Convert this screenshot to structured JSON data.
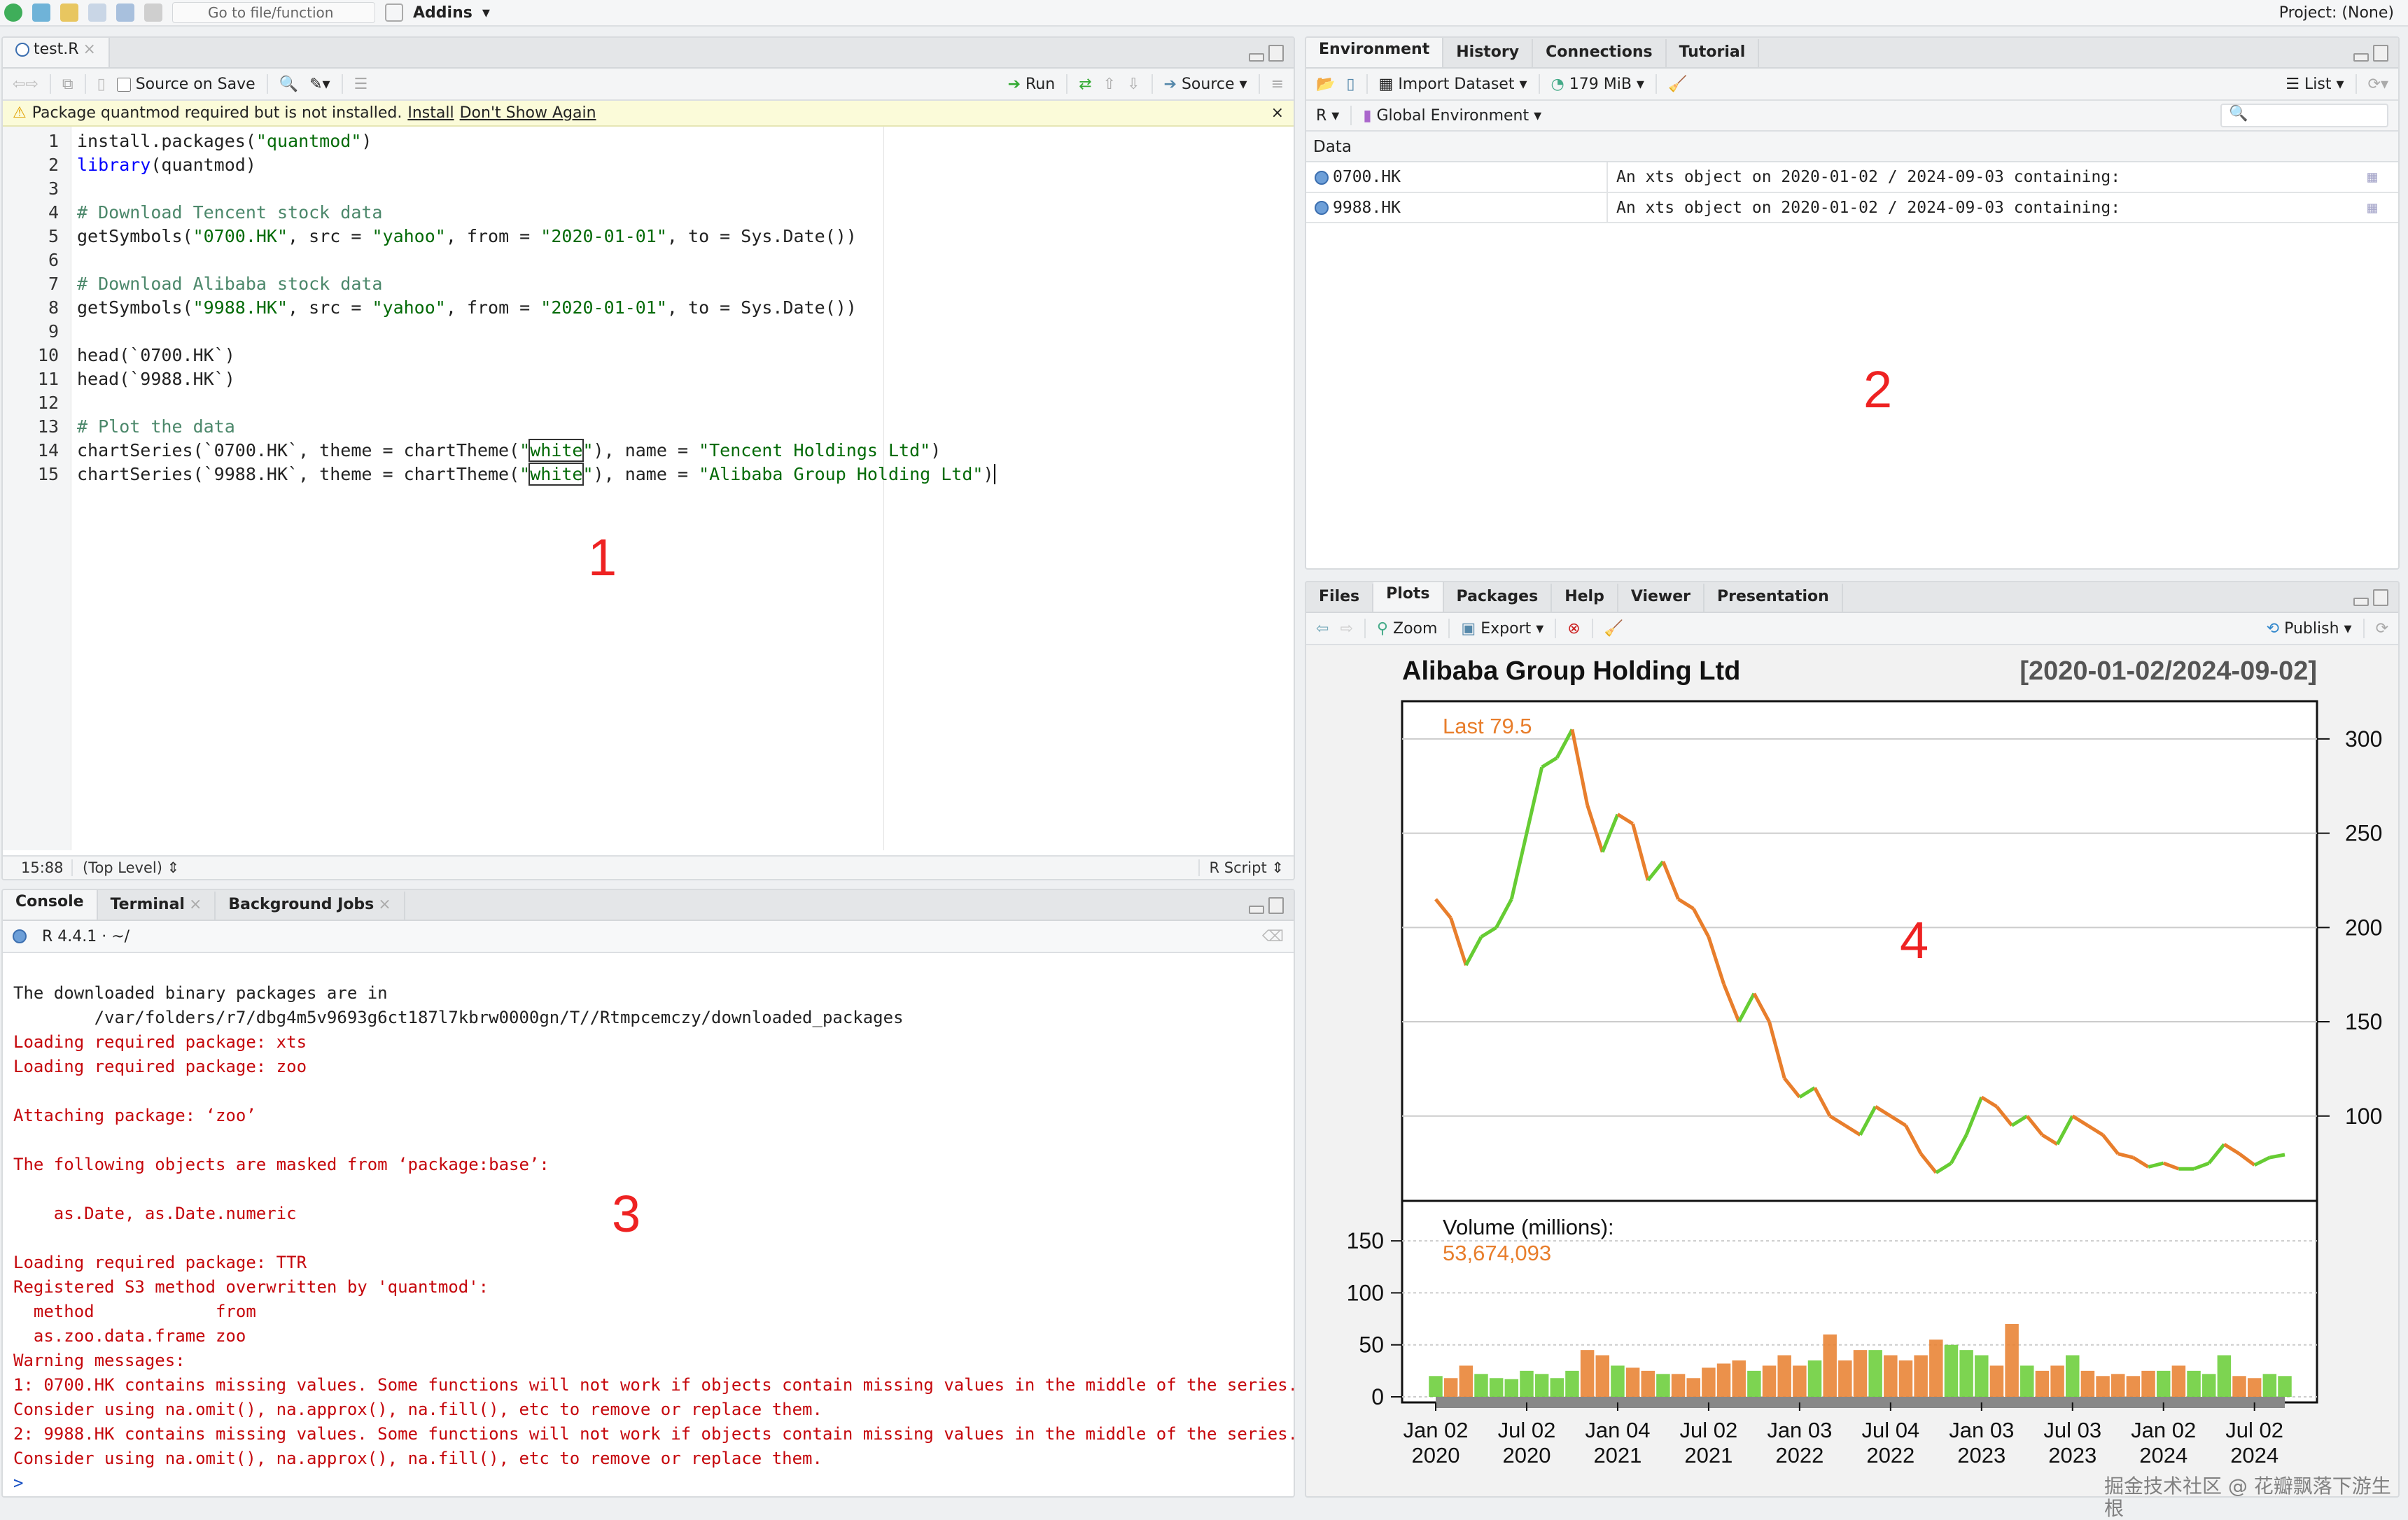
{
  "topbar": {
    "goto_placeholder": "Go to file/function",
    "addins": "Addins",
    "project": "Project: (None)"
  },
  "editor": {
    "tab": "test.R",
    "source_on_save": "Source on Save",
    "run": "Run",
    "source": "Source",
    "warning": {
      "text": "Package quantmod required but is not installed.",
      "install": "Install",
      "dont_show": "Don't Show Again"
    },
    "lines": [
      [
        {
          "t": "install.packages("
        },
        {
          "t": "\"quantmod\"",
          "c": "str"
        },
        {
          "t": ")"
        }
      ],
      [
        {
          "t": "library",
          "c": "kw"
        },
        {
          "t": "(quantmod)"
        }
      ],
      [],
      [
        {
          "t": "# Download Tencent stock data",
          "c": "cmt"
        }
      ],
      [
        {
          "t": "getSymbols("
        },
        {
          "t": "\"0700.HK\"",
          "c": "str"
        },
        {
          "t": ", src = "
        },
        {
          "t": "\"yahoo\"",
          "c": "str"
        },
        {
          "t": ", from = "
        },
        {
          "t": "\"2020-01-01\"",
          "c": "str"
        },
        {
          "t": ", to = Sys.Date())"
        }
      ],
      [],
      [
        {
          "t": "# Download Alibaba stock data",
          "c": "cmt"
        }
      ],
      [
        {
          "t": "getSymbols("
        },
        {
          "t": "\"9988.HK\"",
          "c": "str"
        },
        {
          "t": ", src = "
        },
        {
          "t": "\"yahoo\"",
          "c": "str"
        },
        {
          "t": ", from = "
        },
        {
          "t": "\"2020-01-01\"",
          "c": "str"
        },
        {
          "t": ", to = Sys.Date())"
        }
      ],
      [],
      [
        {
          "t": "head(`0700.HK`)"
        }
      ],
      [
        {
          "t": "head(`9988.HK`)"
        }
      ],
      [],
      [
        {
          "t": "# Plot the data",
          "c": "cmt"
        }
      ],
      [
        {
          "t": "chartSeries(`0700.HK`, theme = chartTheme("
        },
        {
          "t": "\"",
          "c": "str"
        },
        {
          "t": "white",
          "c": "str box"
        },
        {
          "t": "\"",
          "c": "str"
        },
        {
          "t": "), name = "
        },
        {
          "t": "\"Tencent Holdings Ltd\"",
          "c": "str"
        },
        {
          "t": ")"
        }
      ],
      [
        {
          "t": "chartSeries(`9988.HK`, theme = chartTheme("
        },
        {
          "t": "\"",
          "c": "str"
        },
        {
          "t": "white",
          "c": "str box"
        },
        {
          "t": "\"",
          "c": "str"
        },
        {
          "t": "), name = "
        },
        {
          "t": "\"Alibaba Group Holding Ltd\"",
          "c": "str"
        },
        {
          "t": ")"
        }
      ]
    ],
    "status": {
      "pos": "15:88",
      "scope": "(Top Level)",
      "type": "R Script"
    }
  },
  "console": {
    "tabs": [
      "Console",
      "Terminal",
      "Background Jobs"
    ],
    "version": "R 4.4.1 · ~/",
    "lines": [
      {
        "t": ""
      },
      {
        "t": "The downloaded binary packages are in"
      },
      {
        "t": "        /var/folders/r7/dbg4m5v9693g6ct187l7kbrw0000gn/T//Rtmpcemczy/downloaded_packages"
      },
      {
        "t": "Loading required package: xts",
        "c": "red"
      },
      {
        "t": "Loading required package: zoo",
        "c": "red"
      },
      {
        "t": ""
      },
      {
        "t": "Attaching package: ‘zoo’",
        "c": "red"
      },
      {
        "t": ""
      },
      {
        "t": "The following objects are masked from ‘package:base’:",
        "c": "red"
      },
      {
        "t": ""
      },
      {
        "t": "    as.Date, as.Date.numeric",
        "c": "red"
      },
      {
        "t": ""
      },
      {
        "t": "Loading required package: TTR",
        "c": "red"
      },
      {
        "t": "Registered S3 method overwritten by 'quantmod':",
        "c": "red"
      },
      {
        "t": "  method            from",
        "c": "red"
      },
      {
        "t": "  as.zoo.data.frame zoo",
        "c": "red"
      },
      {
        "t": "Warning messages:",
        "c": "red"
      },
      {
        "t": "1: 0700.HK contains missing values. Some functions will not work if objects contain missing values in the middle of the series.",
        "c": "red"
      },
      {
        "t": "Consider using na.omit(), na.approx(), na.fill(), etc to remove or replace them.",
        "c": "red"
      },
      {
        "t": "2: 9988.HK contains missing values. Some functions will not work if objects contain missing values in the middle of the series.",
        "c": "red"
      },
      {
        "t": "Consider using na.omit(), na.approx(), na.fill(), etc to remove or replace them.",
        "c": "red"
      }
    ],
    "prompt": ">"
  },
  "environment": {
    "tabs": [
      "Environment",
      "History",
      "Connections",
      "Tutorial"
    ],
    "import": "Import Dataset",
    "memory": "179 MiB",
    "view": "List",
    "lang": "R",
    "scope": "Global Environment",
    "section": "Data",
    "rows": [
      {
        "name": "0700.HK",
        "value": "An xts object on 2020-01-02 / 2024-09-03 containing:"
      },
      {
        "name": "9988.HK",
        "value": "An xts object on 2020-01-02 / 2024-09-03 containing:"
      }
    ]
  },
  "files": {
    "tabs": [
      "Files",
      "Plots",
      "Packages",
      "Help",
      "Viewer",
      "Presentation"
    ],
    "zoom": "Zoom",
    "export": "Export",
    "publish": "Publish"
  },
  "annotations": [
    "1",
    "2",
    "3",
    "4"
  ],
  "watermark": "掘金技术社区 @ 花瓣飘落下游生根",
  "chart_data": {
    "type": "candlestick",
    "title": "Alibaba Group Holding Ltd",
    "range_label": "[2020-01-02/2024-09-02]",
    "last_label": "Last 79.5",
    "volume_label": "Volume (millions):",
    "volume_last": "53,674,093",
    "up_color": "#66cc33",
    "down_color": "#e87e2c",
    "last_color": "#e87e2c",
    "price_ylim": [
      55,
      320
    ],
    "price_ticks": [
      100,
      150,
      200,
      250,
      300
    ],
    "volume_ylim": [
      0,
      175
    ],
    "volume_ticks": [
      0,
      50,
      100,
      150
    ],
    "x_ticks": [
      {
        "d": "2020-01",
        "l1": "Jan 02",
        "l2": "2020"
      },
      {
        "d": "2020-07",
        "l1": "Jul 02",
        "l2": "2020"
      },
      {
        "d": "2021-01",
        "l1": "Jan 04",
        "l2": "2021"
      },
      {
        "d": "2021-07",
        "l1": "Jul 02",
        "l2": "2021"
      },
      {
        "d": "2022-01",
        "l1": "Jan 03",
        "l2": "2022"
      },
      {
        "d": "2022-07",
        "l1": "Jul 04",
        "l2": "2022"
      },
      {
        "d": "2023-01",
        "l1": "Jan 03",
        "l2": "2023"
      },
      {
        "d": "2023-07",
        "l1": "Jul 03",
        "l2": "2023"
      },
      {
        "d": "2024-01",
        "l1": "Jan 02",
        "l2": "2024"
      },
      {
        "d": "2024-07",
        "l1": "Jul 02",
        "l2": "2024"
      }
    ],
    "months": [
      "2020-01",
      "2020-02",
      "2020-03",
      "2020-04",
      "2020-05",
      "2020-06",
      "2020-07",
      "2020-08",
      "2020-09",
      "2020-10",
      "2020-11",
      "2020-12",
      "2021-01",
      "2021-02",
      "2021-03",
      "2021-04",
      "2021-05",
      "2021-06",
      "2021-07",
      "2021-08",
      "2021-09",
      "2021-10",
      "2021-11",
      "2021-12",
      "2022-01",
      "2022-02",
      "2022-03",
      "2022-04",
      "2022-05",
      "2022-06",
      "2022-07",
      "2022-08",
      "2022-09",
      "2022-10",
      "2022-11",
      "2022-12",
      "2023-01",
      "2023-02",
      "2023-03",
      "2023-04",
      "2023-05",
      "2023-06",
      "2023-07",
      "2023-08",
      "2023-09",
      "2023-10",
      "2023-11",
      "2023-12",
      "2024-01",
      "2024-02",
      "2024-03",
      "2024-04",
      "2024-05",
      "2024-06",
      "2024-07",
      "2024-08",
      "2024-09"
    ],
    "close": [
      215,
      205,
      180,
      195,
      200,
      215,
      250,
      285,
      290,
      305,
      265,
      240,
      260,
      255,
      225,
      235,
      215,
      210,
      195,
      170,
      150,
      165,
      150,
      120,
      110,
      115,
      100,
      95,
      90,
      105,
      100,
      95,
      80,
      70,
      75,
      90,
      110,
      105,
      95,
      100,
      90,
      85,
      100,
      95,
      90,
      80,
      78,
      73,
      75,
      72,
      72,
      75,
      85,
      80,
      74,
      78,
      79.5
    ],
    "volume": [
      20,
      18,
      30,
      22,
      18,
      17,
      25,
      22,
      18,
      25,
      45,
      40,
      30,
      28,
      25,
      22,
      22,
      18,
      28,
      32,
      35,
      25,
      30,
      40,
      30,
      35,
      60,
      35,
      45,
      45,
      40,
      35,
      40,
      55,
      50,
      45,
      40,
      30,
      70,
      30,
      25,
      30,
      40,
      25,
      20,
      22,
      20,
      25,
      25,
      30,
      25,
      22,
      40,
      20,
      18,
      22,
      20
    ]
  }
}
